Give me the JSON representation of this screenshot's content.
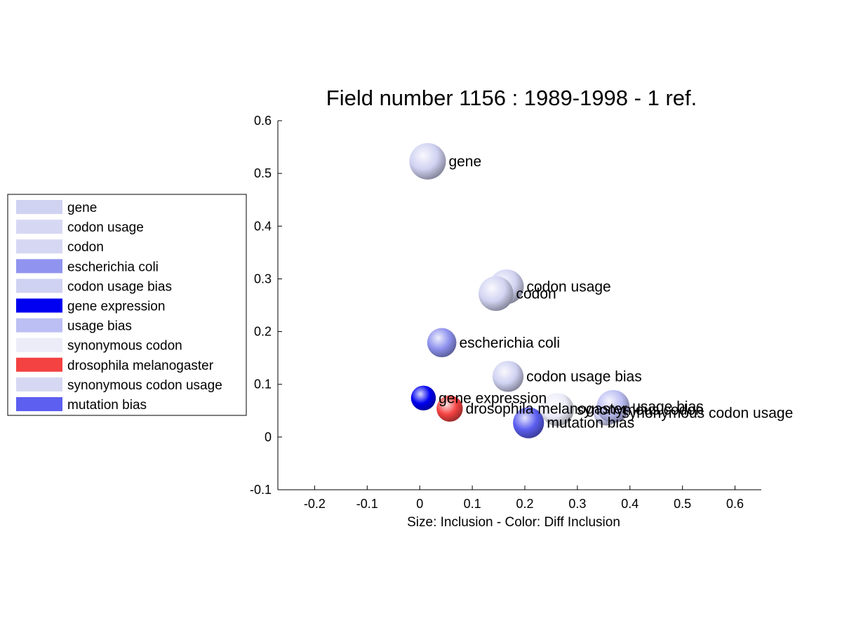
{
  "chart_data": {
    "type": "scatter",
    "title": "Field number 1156 : 1989-1998  - 1 ref.",
    "xlabel": "Size: Inclusion - Color: Diff Inclusion",
    "ylabel": "",
    "xlim": [
      -0.27,
      0.65
    ],
    "ylim": [
      -0.1,
      0.6
    ],
    "x_ticks": [
      -0.2,
      -0.1,
      0,
      0.1,
      0.2,
      0.3,
      0.4,
      0.5,
      0.6
    ],
    "y_ticks": [
      -0.1,
      0,
      0.1,
      0.2,
      0.3,
      0.4,
      0.5,
      0.6
    ],
    "x_tick_labels": [
      "-0.2",
      "-0.1",
      "0",
      "0.1",
      "0.2",
      "0.3",
      "0.4",
      "0.5",
      "0.6"
    ],
    "y_tick_labels": [
      "-0.1",
      "0",
      "0.1",
      "0.2",
      "0.3",
      "0.4",
      "0.5",
      "0.6"
    ],
    "grid": false,
    "legend_position": "left",
    "points": [
      {
        "label": "gene",
        "x": 0.015,
        "y": 0.523,
        "size": 1.0,
        "color": "#d0d2f2"
      },
      {
        "label": "codon usage",
        "x": 0.165,
        "y": 0.285,
        "size": 0.95,
        "color": "#d2d4f2"
      },
      {
        "label": "codon",
        "x": 0.145,
        "y": 0.272,
        "size": 0.95,
        "color": "#d2d4f2"
      },
      {
        "label": "escherichia coli",
        "x": 0.042,
        "y": 0.179,
        "size": 0.8,
        "color": "#8e92ee"
      },
      {
        "label": "codon usage bias",
        "x": 0.168,
        "y": 0.115,
        "size": 0.85,
        "color": "#d0d2f2"
      },
      {
        "label": "gene expression",
        "x": 0.007,
        "y": 0.074,
        "size": 0.68,
        "color": "#0000f0"
      },
      {
        "label": "usage bias",
        "x": 0.368,
        "y": 0.058,
        "size": 0.9,
        "color": "#bcbff3"
      },
      {
        "label": "synonymous codon",
        "x": 0.262,
        "y": 0.052,
        "size": 0.9,
        "color": "#ececf9"
      },
      {
        "label": "drosophila melanogaster",
        "x": 0.057,
        "y": 0.054,
        "size": 0.72,
        "color": "#f44242"
      },
      {
        "label": "synonymous codon usage",
        "x": 0.355,
        "y": 0.046,
        "size": 0.7,
        "color": "#d0d2f2"
      },
      {
        "label": "mutation bias",
        "x": 0.207,
        "y": 0.027,
        "size": 0.85,
        "color": "#5c5ff0"
      }
    ]
  },
  "legend": {
    "items": [
      {
        "label": "gene",
        "color": "#d0d2f2"
      },
      {
        "label": "codon usage",
        "color": "#d6d8f3"
      },
      {
        "label": "codon",
        "color": "#d6d8f3"
      },
      {
        "label": "escherichia coli",
        "color": "#9094ef"
      },
      {
        "label": "codon usage bias",
        "color": "#d0d2f2"
      },
      {
        "label": "gene expression",
        "color": "#0000f0"
      },
      {
        "label": "usage bias",
        "color": "#bcbff3"
      },
      {
        "label": "synonymous codon",
        "color": "#ececf9"
      },
      {
        "label": "drosophila melanogaster",
        "color": "#f44242"
      },
      {
        "label": "synonymous codon usage",
        "color": "#d6d8f3"
      },
      {
        "label": "mutation bias",
        "color": "#5c5ff0"
      }
    ]
  }
}
